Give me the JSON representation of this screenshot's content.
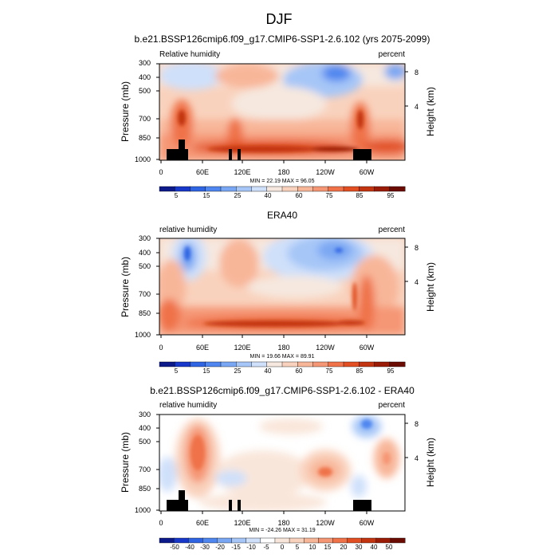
{
  "page_title": "DJF",
  "colormaps": {
    "rh": [
      "#0d1a8a",
      "#1838c9",
      "#2f64e3",
      "#4f86ef",
      "#7aa7f3",
      "#a6c6f7",
      "#cfe0fa",
      "#f6e8df",
      "#f9d2bd",
      "#f8b699",
      "#f59674",
      "#ef7249",
      "#e14f22",
      "#c33510",
      "#9a1c06",
      "#6b0c02"
    ],
    "diff": [
      "#0d1a8a",
      "#1838c9",
      "#2f64e3",
      "#4f86ef",
      "#7aa7f3",
      "#a6c6f7",
      "#cfe0fa",
      "#ffffff",
      "#f9e6da",
      "#f9d2bd",
      "#f8b699",
      "#f59674",
      "#ef7249",
      "#e14f22",
      "#c33510",
      "#9a1c06",
      "#6b0c02"
    ]
  },
  "panels": [
    {
      "title": "b.e21.BSSP126cmip6.f09_g17.CMIP6-SSP1-2.6.102 (yrs 2075-2099)",
      "left_label": "Relative humidity",
      "right_label": "percent",
      "ylabel": "Pressure (mb)",
      "ylabel_right": "Height (km)",
      "yticks": [
        "300",
        "400",
        "500",
        "700",
        "850",
        "1000"
      ],
      "yticks_right": [
        "8",
        "4"
      ],
      "xticks": [
        "0",
        "60E",
        "120E",
        "180",
        "120W",
        "60W"
      ],
      "minmax": "MIN = 22.19  MAX = 96.05",
      "colorbar_labels": [
        "5",
        "15",
        "25",
        "40",
        "60",
        "75",
        "85",
        "95"
      ]
    },
    {
      "title": "ERA40",
      "left_label": "relative humidity",
      "right_label": "percent",
      "ylabel": "Pressure (mb)",
      "ylabel_right": "Height (km)",
      "yticks": [
        "300",
        "400",
        "500",
        "700",
        "850",
        "1000"
      ],
      "yticks_right": [
        "8",
        "4"
      ],
      "xticks": [
        "0",
        "60E",
        "120E",
        "180",
        "120W",
        "60W"
      ],
      "minmax": "MIN = 19.66  MAX = 89.91",
      "colorbar_labels": [
        "5",
        "15",
        "25",
        "40",
        "60",
        "75",
        "85",
        "95"
      ]
    },
    {
      "title": "b.e21.BSSP126cmip6.f09_g17.CMIP6-SSP1-2.6.102 - ERA40",
      "left_label": "relative humidity",
      "right_label": "percent",
      "ylabel": "Pressure (mb)",
      "ylabel_right": "Height (km)",
      "yticks": [
        "300",
        "400",
        "500",
        "700",
        "850",
        "1000"
      ],
      "yticks_right": [
        "8",
        "4"
      ],
      "xticks": [
        "0",
        "60E",
        "120E",
        "180",
        "120W",
        "60W"
      ],
      "minmax": "MIN = -24.26  MAX = 31.19",
      "colorbar_labels": [
        "-50",
        "-40",
        "-30",
        "-20",
        "-15",
        "-10",
        "-5",
        "0",
        "5",
        "10",
        "15",
        "20",
        "30",
        "40",
        "50"
      ]
    }
  ],
  "chart_data": [
    {
      "type": "heatmap",
      "title": "b.e21.BSSP126cmip6.f09_g17.CMIP6-SSP1-2.6.102 (yrs 2075-2099)",
      "variable": "Relative humidity",
      "units": "percent",
      "ylabel": "Pressure (mb)",
      "x": [
        "0",
        "60E",
        "120E",
        "180",
        "120W",
        "60W"
      ],
      "y": [
        300,
        400,
        500,
        700,
        850,
        1000
      ],
      "z_range": [
        22.19,
        96.05
      ],
      "contour_levels": [
        5,
        10,
        15,
        20,
        25,
        30,
        40,
        50,
        60,
        70,
        75,
        80,
        85,
        90,
        95
      ],
      "features": [
        "upper-level dry minima over Pacific near 120W-90W (~25%)",
        "moist boundary layer below 850 mb (>85%)",
        "topographic mask near 20E-40E and 70W-60W"
      ]
    },
    {
      "type": "heatmap",
      "title": "ERA40",
      "variable": "relative humidity",
      "units": "percent",
      "ylabel": "Pressure (mb)",
      "x": [
        "0",
        "60E",
        "120E",
        "180",
        "120W",
        "60W"
      ],
      "y": [
        300,
        400,
        500,
        700,
        850,
        1000
      ],
      "z_range": [
        19.66,
        89.91
      ],
      "contour_levels": [
        5,
        10,
        15,
        20,
        25,
        30,
        40,
        50,
        60,
        70,
        75,
        80,
        85,
        90,
        95
      ],
      "features": [
        "dry upper troposphere over 45E near 400 mb (~20%)",
        "broad dry region 150W-90W at 300-500 mb",
        "moist boundary layer below 850 mb"
      ]
    },
    {
      "type": "heatmap",
      "title": "b.e21.BSSP126cmip6.f09_g17.CMIP6-SSP1-2.6.102 - ERA40",
      "variable": "relative humidity",
      "units": "percent",
      "ylabel": "Pressure (mb)",
      "x": [
        "0",
        "60E",
        "120E",
        "180",
        "120W",
        "60W"
      ],
      "y": [
        300,
        400,
        500,
        700,
        850,
        1000
      ],
      "z_range": [
        -24.26,
        31.19
      ],
      "contour_levels": [
        -50,
        -40,
        -30,
        -20,
        -15,
        -10,
        -5,
        0,
        5,
        10,
        15,
        20,
        30,
        40,
        50
      ],
      "features": [
        "positive anomaly ~+30 near 50E at 500-600 mb",
        "positive anomaly ~+20 near 120W at 700 mb",
        "negative anomalies near 70W-60W upper levels"
      ]
    }
  ]
}
